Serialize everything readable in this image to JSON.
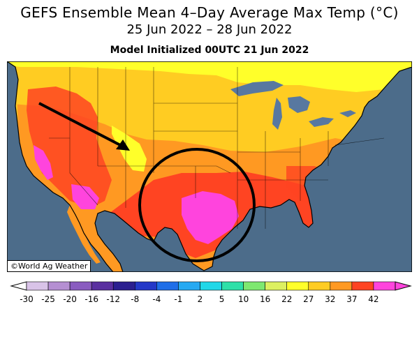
{
  "header": {
    "title": "GEFS Ensemble Mean 4–Day Average Max Temp (°C)",
    "date_range": "25 Jun 2022 – 28 Jun 2022",
    "init": "Model Initialized 00UTC 21 Jun 2022"
  },
  "credit": "©World Ag Weather",
  "legend": {
    "labels": [
      "-30",
      "-25",
      "-20",
      "-16",
      "-12",
      "-8",
      "-4",
      "-1",
      "2",
      "5",
      "10",
      "16",
      "22",
      "27",
      "32",
      "37",
      "42"
    ],
    "colors": [
      "#d9c3e8",
      "#b58fd2",
      "#8a5cc0",
      "#5a2fa0",
      "#2b1f90",
      "#2438c8",
      "#1f6ee8",
      "#26a9f2",
      "#20d8e8",
      "#2ee0a8",
      "#7ee870",
      "#ddf060",
      "#ffff2a",
      "#ffcc22",
      "#ff9922",
      "#ff4422",
      "#ff44dd"
    ],
    "end_low": "#ffffff",
    "end_high": "#ff44dd"
  },
  "colors": {
    "ocean": "#4c6c8a",
    "lake": "#5878a0",
    "arrow": "#000000",
    "circle": "#000000"
  }
}
